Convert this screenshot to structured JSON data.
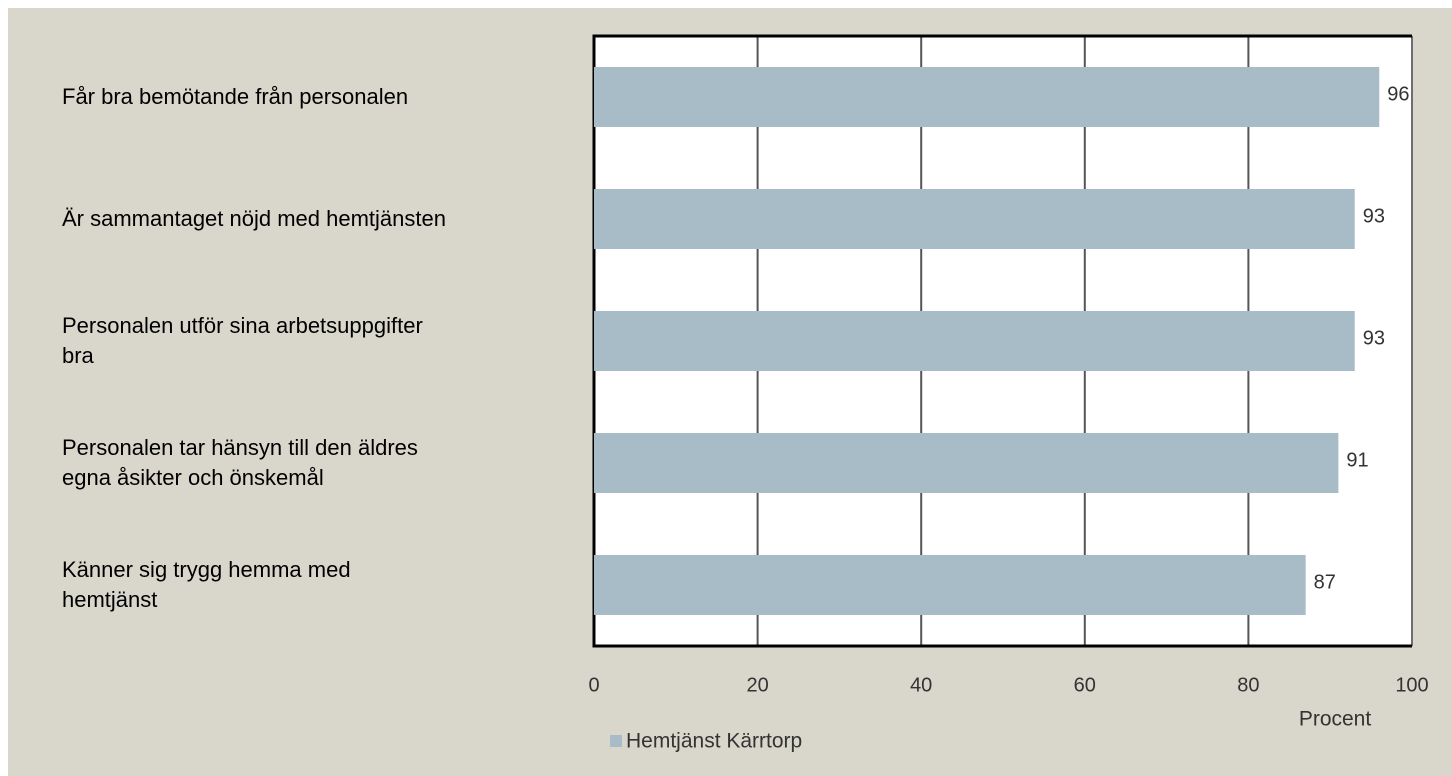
{
  "chart_data": {
    "type": "bar",
    "orientation": "horizontal",
    "categories": [
      "Får bra bemötande från personalen",
      "Är sammantaget nöjd med hemtjänsten",
      "Personalen utför sina arbetsuppgifter\nbra",
      "Personalen tar hänsyn till den äldres\negna åsikter och önskemål",
      "Känner sig trygg hemma med\nhemtjänst"
    ],
    "series": [
      {
        "name": "Hemtjänst Kärrtorp",
        "color": "#a8bcc8",
        "values": [
          96,
          93,
          93,
          91,
          87
        ]
      }
    ],
    "xlim": [
      0,
      100
    ],
    "xticks": [
      0,
      20,
      40,
      60,
      80,
      100
    ],
    "xlabel": "Procent",
    "grid": true
  }
}
